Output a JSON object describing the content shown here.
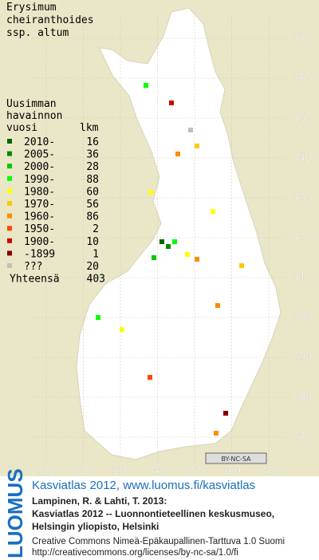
{
  "title": [
    "Erysimum",
    "cheiranthoides",
    "ssp. altum"
  ],
  "legend": {
    "heading": [
      "Uusimman",
      "havainnon",
      "vuosi"
    ],
    "count_heading": "lkm",
    "entries": [
      {
        "label": "2010-",
        "count": 16,
        "color": "#006400"
      },
      {
        "label": "2005-",
        "count": 36,
        "color": "#008c00"
      },
      {
        "label": "2000-",
        "count": 28,
        "color": "#00c800"
      },
      {
        "label": "1990-",
        "count": 88,
        "color": "#00ff00"
      },
      {
        "label": "1980-",
        "count": 60,
        "color": "#ffff00"
      },
      {
        "label": "1970-",
        "count": 56,
        "color": "#ffc800"
      },
      {
        "label": "1960-",
        "count": 86,
        "color": "#ff8c00"
      },
      {
        "label": "1950-",
        "count": 2,
        "color": "#ff4600"
      },
      {
        "label": "1900-",
        "count": 10,
        "color": "#d20000"
      },
      {
        "label": "-1899",
        "count": 1,
        "color": "#820000"
      },
      {
        "label": "???",
        "count": 20,
        "color": "#c0c0c0"
      }
    ],
    "total_label": "Yhteensä",
    "total": 403
  },
  "grid": {
    "y_labels": [
      770,
      760,
      750,
      740,
      730,
      720,
      710,
      700,
      690,
      680,
      670
    ],
    "x_labels": [
      310,
      320,
      330,
      340,
      350,
      360,
      370
    ]
  },
  "cc_badge": "BY-NC-SA",
  "footer": {
    "brand": "LUOMUS",
    "link": "Kasviatlas 2012, www.luomus.fi/kasviatlas",
    "citation": [
      "Lampinen, R. & Lahti, T. 2013:",
      "Kasviatlas 2012 -- Luonnontieteellinen keskusmuseo,",
      "Helsingin yliopisto, Helsinki"
    ],
    "license": [
      "Creative Commons Nimeä-Epäkaupallinen-Tarttuva 1.0 Suomi",
      "http://creativecommons.org/licenses/by-nc-sa/1.0/fi"
    ]
  }
}
